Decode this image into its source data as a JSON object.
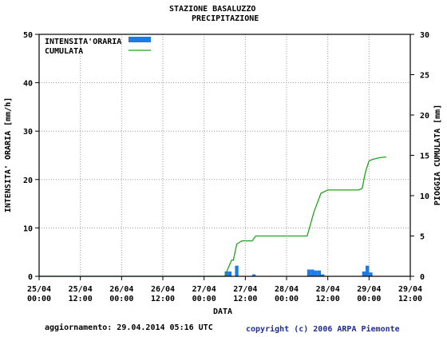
{
  "chart_data": {
    "type": "bar",
    "title": "STAZIONE BASALUZZO",
    "subtitle": "PRECIPITAZIONE",
    "xlabel": "DATA",
    "ylabel_left": "INTENSITA' ORARIA [mm/h]",
    "ylabel_right": "PIOGGIA CUMULATA [mm]",
    "ylim_left": [
      0,
      50
    ],
    "ylim_right": [
      0,
      30
    ],
    "yticks_left": [
      "0",
      "10",
      "20",
      "30",
      "40",
      "50"
    ],
    "yticks_right": [
      "0",
      "5",
      "10",
      "15",
      "20",
      "25",
      "30"
    ],
    "xticks": [
      {
        "date": "25/04",
        "time": "00:00"
      },
      {
        "date": "25/04",
        "time": "12:00"
      },
      {
        "date": "26/04",
        "time": "00:00"
      },
      {
        "date": "26/04",
        "time": "12:00"
      },
      {
        "date": "27/04",
        "time": "00:00"
      },
      {
        "date": "27/04",
        "time": "12:00"
      },
      {
        "date": "28/04",
        "time": "00:00"
      },
      {
        "date": "28/04",
        "time": "12:00"
      },
      {
        "date": "29/04",
        "time": "00:00"
      },
      {
        "date": "29/04",
        "time": "12:00"
      }
    ],
    "grid": true,
    "legend_position": "top-left",
    "series": [
      {
        "name": "INTENSITA'ORARIA",
        "type": "bar",
        "axis": "left",
        "color": "#1e7be6",
        "hours": [
          54,
          55,
          57,
          62,
          78,
          79,
          80,
          81,
          82,
          94,
          95,
          96
        ],
        "values": [
          1.0,
          1.0,
          2.2,
          0.4,
          1.4,
          1.4,
          1.2,
          1.2,
          0.4,
          1.0,
          2.2,
          0.8
        ]
      },
      {
        "name": "CUMULATA",
        "type": "line",
        "axis": "right",
        "color": "#1fa31f",
        "hours": [
          0,
          54,
          56,
          56.5,
          57.5,
          59,
          62,
          63,
          78,
          80,
          82,
          84,
          93,
          94,
          95,
          96,
          97,
          99,
          101
        ],
        "values": [
          0,
          0,
          2.0,
          2.0,
          4.0,
          4.4,
          4.4,
          5.0,
          5.0,
          8.0,
          10.3,
          10.7,
          10.7,
          10.9,
          13.0,
          14.3,
          14.5,
          14.7,
          14.8
        ]
      }
    ]
  },
  "footer": {
    "updated": "aggiornamento: 29.04.2014 05:16 UTC",
    "copyright": "copyright (c) 2006 ARPA Piemonte"
  }
}
